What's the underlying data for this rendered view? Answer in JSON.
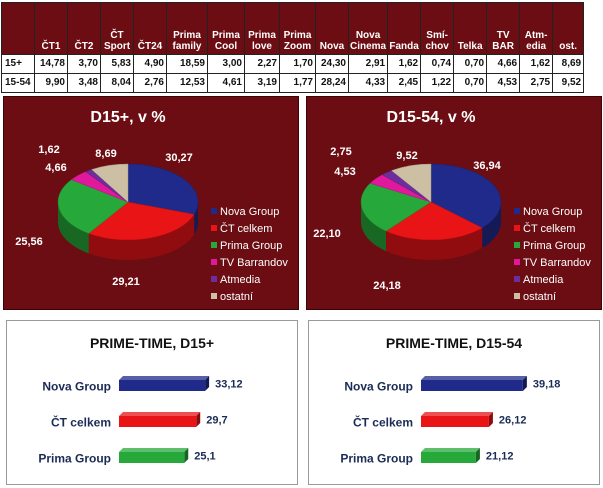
{
  "table": {
    "headers": [
      "",
      "ČT1",
      "ČT2",
      "ČT Sport",
      "ČT24",
      "Prima family",
      "Prima Cool",
      "Prima love",
      "Prima Zoom",
      "Nova",
      "Nova Cinema",
      "Fanda",
      "Smí- chov",
      "Telka",
      "TV BAR",
      "Atm- edia",
      "ost."
    ],
    "rows": [
      {
        "label": "15+",
        "values": [
          "14,78",
          "3,70",
          "5,83",
          "4,90",
          "18,59",
          "3,00",
          "2,27",
          "1,70",
          "24,30",
          "2,91",
          "1,62",
          "0,74",
          "0,70",
          "4,66",
          "1,62",
          "8,69"
        ]
      },
      {
        "label": "15-54",
        "values": [
          "9,90",
          "3,48",
          "8,04",
          "2,76",
          "12,53",
          "4,61",
          "3,19",
          "1,77",
          "28,24",
          "4,33",
          "2,45",
          "1,22",
          "0,70",
          "4,53",
          "2,75",
          "9,52"
        ]
      }
    ]
  },
  "colors": {
    "panel_bg": "#6b0d12",
    "nova": "#1f2a8a",
    "ct": "#e81416",
    "prima": "#27a83a",
    "tv_barrandov": "#e0199c",
    "atmedia": "#6e2c9c",
    "ostatni": "#cdbfa3",
    "bar_text": "#1a2b55"
  },
  "chart_data": [
    {
      "type": "pie",
      "title": "D15+, v %",
      "categories": [
        "Nova Group",
        "ČT celkem",
        "Prima Group",
        "TV Barrandov",
        "Atmedia",
        "ostatní"
      ],
      "values": [
        30.27,
        29.21,
        25.56,
        4.66,
        1.62,
        8.69
      ],
      "value_labels": [
        "30,27",
        "29,21",
        "25,56",
        "4,66",
        "1,62",
        "8,69"
      ],
      "legend": "right"
    },
    {
      "type": "pie",
      "title": "D15-54, v %",
      "categories": [
        "Nova Group",
        "ČT celkem",
        "Prima Group",
        "TV Barrandov",
        "Atmedia",
        "ostatní"
      ],
      "values": [
        36.94,
        24.18,
        22.1,
        4.53,
        2.75,
        9.52
      ],
      "value_labels": [
        "36,94",
        "24,18",
        "22,10",
        "4,53",
        "2,75",
        "9,52"
      ],
      "legend": "right"
    },
    {
      "type": "bar",
      "title": "PRIME-TIME, D15+",
      "categories": [
        "Nova Group",
        "ČT celkem",
        "Prima Group"
      ],
      "values": [
        33.12,
        29.7,
        25.1
      ],
      "value_labels": [
        "33,12",
        "29,7",
        "25,1"
      ]
    },
    {
      "type": "bar",
      "title": "PRIME-TIME, D15-54",
      "categories": [
        "Nova Group",
        "ČT celkem",
        "Prima Group"
      ],
      "values": [
        39.18,
        26.12,
        21.12
      ],
      "value_labels": [
        "39,18",
        "26,12",
        "21,12"
      ]
    }
  ]
}
